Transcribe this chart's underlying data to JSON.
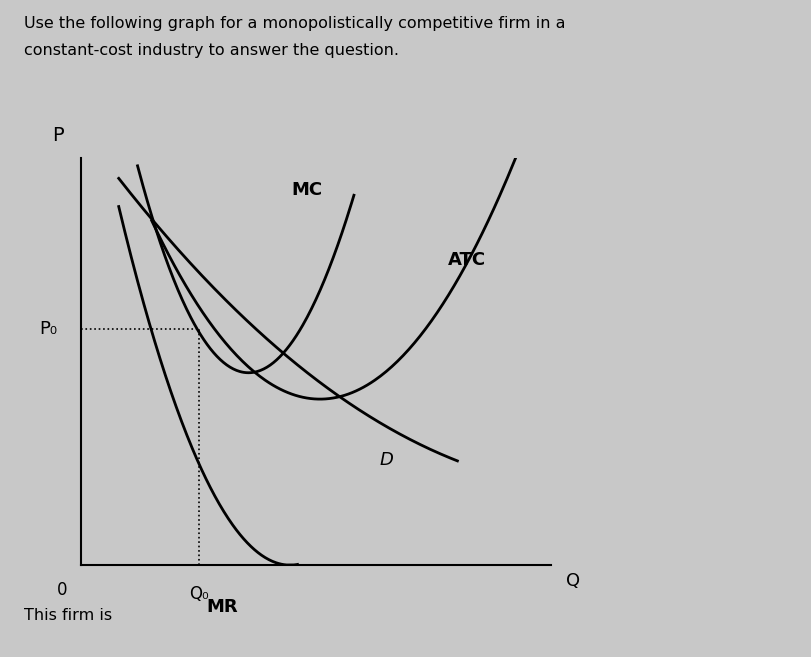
{
  "title_line1": "Use the following graph for a monopolistically competitive firm in a",
  "title_line2": "constant-cost industry to answer the question.",
  "bg_color": "#c8c8c8",
  "plot_bg_color": "#c8c8c8",
  "footer_text": "This firm is",
  "p_label": "P",
  "q_label": "Q",
  "p0_label": "P₀",
  "q0_label": "Q₀",
  "zero_label": "0",
  "mc_label": "MC",
  "atc_label": "ATC",
  "d_label": "D",
  "mr_label": "MR",
  "xlim": [
    0,
    10
  ],
  "ylim": [
    0,
    10
  ],
  "p0_val": 5.8,
  "q0_val": 2.5
}
